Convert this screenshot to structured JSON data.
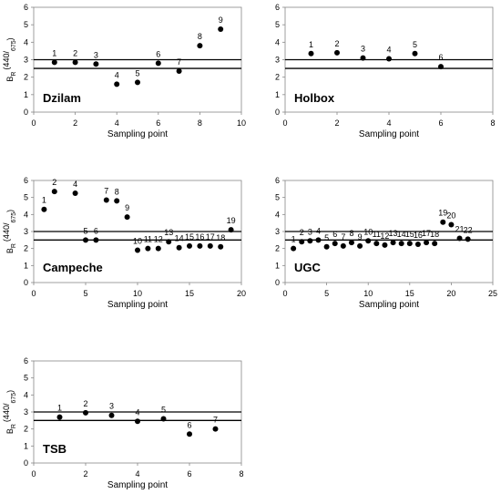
{
  "chart_data": [
    {
      "type": "scatter",
      "site": "Dzilam",
      "xlabel": "Sampling point",
      "ylabel_main": "B",
      "ylabel_sub": "R",
      "ylabel_paren": "(440/",
      "ylabel_denom": "675",
      "ylabel_close": ")",
      "xlim": [
        0,
        10
      ],
      "xticks": [
        0,
        2,
        4,
        6,
        8,
        10
      ],
      "ylim": [
        0,
        6
      ],
      "yticks": [
        0,
        1,
        2,
        3,
        4,
        5,
        6
      ],
      "reference_lines": [
        3.0,
        2.5
      ],
      "points": [
        {
          "label": "1",
          "x": 1,
          "y": 2.85
        },
        {
          "label": "2",
          "x": 2,
          "y": 2.85
        },
        {
          "label": "3",
          "x": 3,
          "y": 2.75
        },
        {
          "label": "4",
          "x": 4,
          "y": 1.6
        },
        {
          "label": "5",
          "x": 5,
          "y": 1.7
        },
        {
          "label": "6",
          "x": 6,
          "y": 2.8
        },
        {
          "label": "7",
          "x": 7,
          "y": 2.35
        },
        {
          "label": "8",
          "x": 8,
          "y": 3.8
        },
        {
          "label": "9",
          "x": 9,
          "y": 4.75
        }
      ]
    },
    {
      "type": "scatter",
      "site": "Holbox",
      "xlabel": "Sampling point",
      "xlim": [
        0,
        8
      ],
      "xticks": [
        0,
        2,
        4,
        6,
        8
      ],
      "ylim": [
        0,
        6
      ],
      "yticks": [
        0,
        1,
        2,
        3,
        4,
        5,
        6
      ],
      "reference_lines": [
        3.0,
        2.5
      ],
      "points": [
        {
          "label": "1",
          "x": 1,
          "y": 3.35
        },
        {
          "label": "2",
          "x": 2,
          "y": 3.4
        },
        {
          "label": "3",
          "x": 3,
          "y": 3.1
        },
        {
          "label": "4",
          "x": 4,
          "y": 3.05
        },
        {
          "label": "5",
          "x": 5,
          "y": 3.35
        },
        {
          "label": "6",
          "x": 6,
          "y": 2.6
        }
      ]
    },
    {
      "type": "scatter",
      "site": "Campeche",
      "xlabel": "Sampling point",
      "ylabel_main": "B",
      "ylabel_sub": "R",
      "ylabel_paren": "(440/",
      "ylabel_denom": "675",
      "ylabel_close": ")",
      "xlim": [
        0,
        20
      ],
      "xticks": [
        0,
        5,
        10,
        15,
        20
      ],
      "ylim": [
        0,
        6
      ],
      "yticks": [
        0,
        1,
        2,
        3,
        4,
        5,
        6
      ],
      "reference_lines": [
        3.0,
        2.5
      ],
      "points": [
        {
          "label": "1",
          "x": 1,
          "y": 4.3
        },
        {
          "label": "2",
          "x": 2,
          "y": 5.35
        },
        {
          "label": "4",
          "x": 4,
          "y": 5.25
        },
        {
          "label": "5",
          "x": 5,
          "y": 2.5
        },
        {
          "label": "6",
          "x": 6,
          "y": 2.5
        },
        {
          "label": "7",
          "x": 7,
          "y": 4.85
        },
        {
          "label": "8",
          "x": 8,
          "y": 4.8
        },
        {
          "label": "9",
          "x": 9,
          "y": 3.85
        },
        {
          "label": "10",
          "x": 10,
          "y": 1.9
        },
        {
          "label": "11",
          "x": 11,
          "y": 2.0
        },
        {
          "label": "12",
          "x": 12,
          "y": 2.0
        },
        {
          "label": "13",
          "x": 13,
          "y": 2.4
        },
        {
          "label": "14",
          "x": 14,
          "y": 2.05
        },
        {
          "label": "15",
          "x": 15,
          "y": 2.15
        },
        {
          "label": "16",
          "x": 16,
          "y": 2.15
        },
        {
          "label": "17",
          "x": 17,
          "y": 2.15
        },
        {
          "label": "18",
          "x": 18,
          "y": 2.1
        },
        {
          "label": "19",
          "x": 19,
          "y": 3.1
        }
      ]
    },
    {
      "type": "scatter",
      "site": "UGC",
      "xlabel": "Sampling point",
      "xlim": [
        0,
        25
      ],
      "xticks": [
        0,
        5,
        10,
        15,
        20,
        25
      ],
      "ylim": [
        0,
        6
      ],
      "yticks": [
        0,
        1,
        2,
        3,
        4,
        5,
        6
      ],
      "reference_lines": [
        3.0,
        2.5
      ],
      "points": [
        {
          "label": "1",
          "x": 1,
          "y": 2.0
        },
        {
          "label": "2",
          "x": 2,
          "y": 2.4
        },
        {
          "label": "3",
          "x": 3,
          "y": 2.45
        },
        {
          "label": "4",
          "x": 4,
          "y": 2.5
        },
        {
          "label": "5",
          "x": 5,
          "y": 2.1
        },
        {
          "label": "6",
          "x": 6,
          "y": 2.3
        },
        {
          "label": "7",
          "x": 7,
          "y": 2.15
        },
        {
          "label": "8",
          "x": 8,
          "y": 2.35
        },
        {
          "label": "9",
          "x": 9,
          "y": 2.15
        },
        {
          "label": "10",
          "x": 10,
          "y": 2.45
        },
        {
          "label": "11",
          "x": 11,
          "y": 2.3
        },
        {
          "label": "12",
          "x": 12,
          "y": 2.2
        },
        {
          "label": "13",
          "x": 13,
          "y": 2.35
        },
        {
          "label": "14",
          "x": 14,
          "y": 2.3
        },
        {
          "label": "15",
          "x": 15,
          "y": 2.3
        },
        {
          "label": "16",
          "x": 16,
          "y": 2.25
        },
        {
          "label": "17",
          "x": 17,
          "y": 2.35
        },
        {
          "label": "18",
          "x": 18,
          "y": 2.3
        },
        {
          "label": "19",
          "x": 19,
          "y": 3.55
        },
        {
          "label": "20",
          "x": 20,
          "y": 3.4
        },
        {
          "label": "21",
          "x": 21,
          "y": 2.6
        },
        {
          "label": "22",
          "x": 22,
          "y": 2.55
        }
      ]
    },
    {
      "type": "scatter",
      "site": "TSB",
      "xlabel": "Sampling point",
      "ylabel_main": "B",
      "ylabel_sub": "R",
      "ylabel_paren": "(440/",
      "ylabel_denom": "675",
      "ylabel_close": ")",
      "xlim": [
        0,
        8
      ],
      "xticks": [
        0,
        2,
        4,
        6,
        8
      ],
      "ylim": [
        0,
        6
      ],
      "yticks": [
        0,
        1,
        2,
        3,
        4,
        5,
        6
      ],
      "reference_lines": [
        3.0,
        2.5
      ],
      "points": [
        {
          "label": "1",
          "x": 1,
          "y": 2.7
        },
        {
          "label": "2",
          "x": 2,
          "y": 2.95
        },
        {
          "label": "3",
          "x": 3,
          "y": 2.8
        },
        {
          "label": "4",
          "x": 4,
          "y": 2.45
        },
        {
          "label": "5",
          "x": 5,
          "y": 2.6
        },
        {
          "label": "6",
          "x": 6,
          "y": 1.7
        },
        {
          "label": "7",
          "x": 7,
          "y": 2.0
        }
      ]
    }
  ]
}
